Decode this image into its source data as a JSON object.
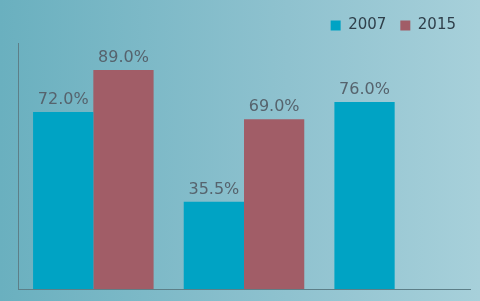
{
  "chart_data": {
    "type": "bar",
    "categories": [
      null,
      null,
      null
    ],
    "series": [
      {
        "name": "2007",
        "color": "#00a3c4",
        "values": [
          72.0,
          35.5,
          76.0
        ],
        "value_labels": [
          "72.0%",
          "35.5%",
          "76.0%"
        ]
      },
      {
        "name": "2015",
        "color": "#a15d67",
        "values": [
          89.0,
          69.0,
          null
        ],
        "value_labels": [
          "89.0%",
          "69.0%",
          null
        ]
      }
    ],
    "ylim": [
      0,
      100
    ],
    "grid": false,
    "legend": "top-right",
    "data_labels": true,
    "tick_labels": false
  }
}
